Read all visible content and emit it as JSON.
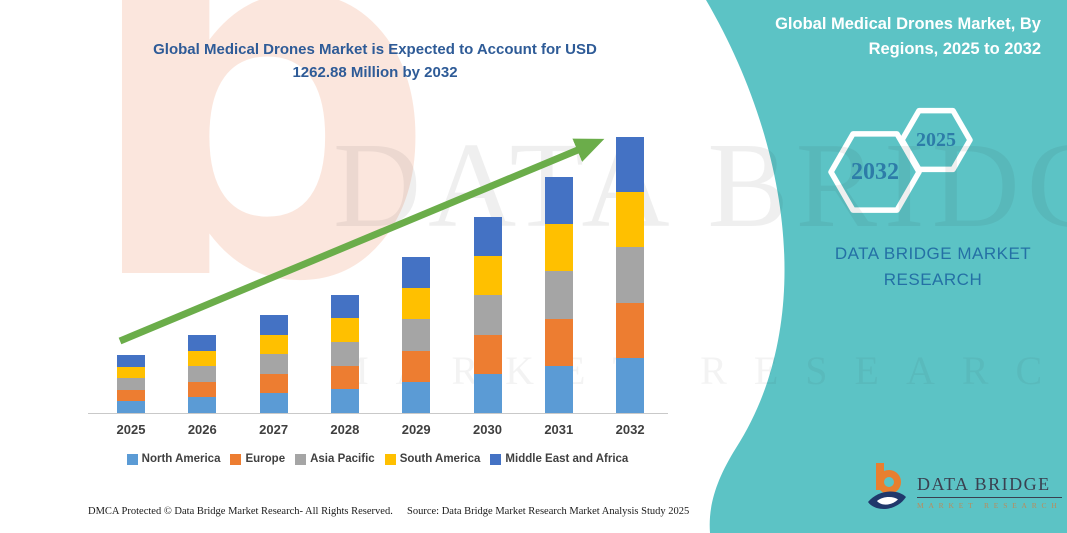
{
  "watermark": {
    "letter": "b",
    "line1": "DATA BRIDGE",
    "line2": "MARKET RESEARCH"
  },
  "chart_data": {
    "type": "bar",
    "stacked": true,
    "title": "Global Medical Drones Market is Expected to Account for USD 1262.88 Million by 2032",
    "title_line1": "Global Medical Drones Market is Expected to Account for USD",
    "title_line2": "1262.88 Million by 2032",
    "unit": "USD Million",
    "categories": [
      "2025",
      "2026",
      "2027",
      "2028",
      "2029",
      "2030",
      "2031",
      "2032"
    ],
    "series": [
      {
        "name": "North America",
        "color": "#5B9BD5",
        "values": [
          53.0,
          71.4,
          89.8,
          108.2,
          143.0,
          179.6,
          216.2,
          252.58
        ]
      },
      {
        "name": "Europe",
        "color": "#ED7D31",
        "values": [
          53.0,
          71.4,
          89.8,
          108.2,
          143.0,
          179.6,
          216.2,
          252.58
        ]
      },
      {
        "name": "Asia Pacific",
        "color": "#A5A5A5",
        "values": [
          53.0,
          71.4,
          89.8,
          108.2,
          143.0,
          179.6,
          216.2,
          252.58
        ]
      },
      {
        "name": "South America",
        "color": "#FFC000",
        "values": [
          53.0,
          71.4,
          89.8,
          108.2,
          143.0,
          179.6,
          216.2,
          252.58
        ]
      },
      {
        "name": "Middle East and Africa",
        "color": "#4472C4",
        "values": [
          53.0,
          71.4,
          89.8,
          108.2,
          143.0,
          179.6,
          216.2,
          252.58
        ]
      }
    ],
    "totals": [
      265,
      357,
      449,
      541,
      715,
      898,
      1081,
      1262.88
    ],
    "ylim": [
      0,
      1263
    ],
    "grid": false,
    "legend_position": "bottom",
    "annotation": "green upward growth trend arrow from 2025 bar to 2032 bar"
  },
  "right_panel": {
    "title": "Global Medical Drones Market, By Regions, 2025 to 2032",
    "title_line1": "Global Medical Drones Market, By",
    "title_line2": "Regions, 2025 to 2032",
    "hexagon_years": [
      "2032",
      "2025"
    ],
    "brand_line1": "DATA BRIDGE MARKET",
    "brand_line2": "RESEARCH",
    "logo": {
      "name": "DATA BRIDGE",
      "subtext": "MARKET RESEARCH"
    }
  },
  "footer": {
    "left": "DMCA Protected © Data Bridge Market Research-  All Rights Reserved.",
    "right": "Source: Data Bridge Market Research  Market Analysis Study 2025"
  },
  "colors": {
    "teal_panel": "#5CC3C5",
    "chart_title": "#2E5B97",
    "right_text": "#2470A5",
    "hexagon_year": "#2D7CA8",
    "arrow_green": "#6BAD4A",
    "axis_line": "#C9C9C9",
    "legend_text": "#404040",
    "logo_orange": "#E87F2F",
    "logo_navy": "#20386B"
  }
}
